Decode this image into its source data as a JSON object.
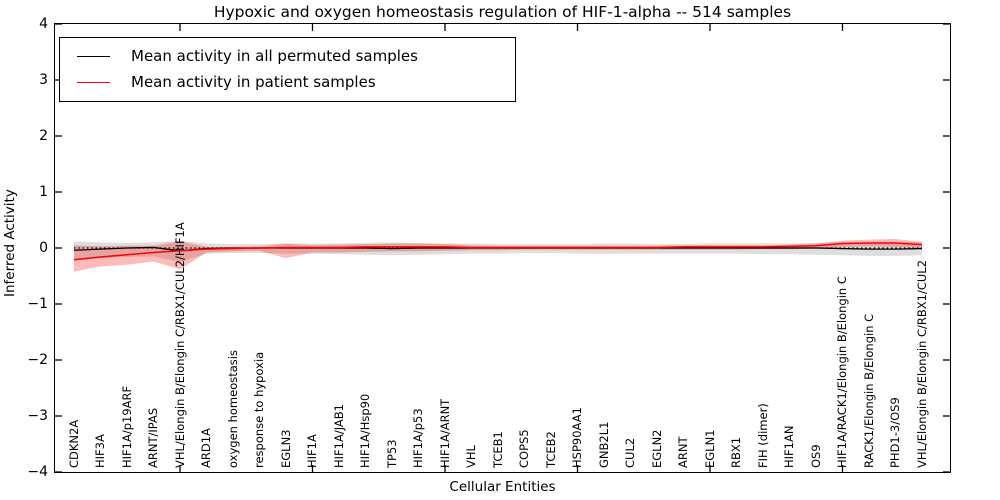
{
  "chart_data": {
    "type": "line",
    "title": "Hypoxic and oxygen homeostasis regulation of HIF-1-alpha -- 514 samples",
    "xlabel": "Cellular Entities",
    "ylabel": "Inferred Activity",
    "ylim": [
      -4,
      4
    ],
    "yticks": [
      4,
      3,
      2,
      1,
      0,
      -1,
      -2,
      -3,
      -4
    ],
    "ytick_labels": [
      "4",
      "3",
      "2",
      "1",
      "0",
      "−1",
      "−2",
      "−3",
      "−4"
    ],
    "xtick_indices": [
      4,
      9,
      14,
      19,
      24,
      29
    ],
    "grid": false,
    "legend_position": "upper left",
    "zero_line": {
      "style": "dotted",
      "color": "#000000",
      "y": 0
    },
    "categories": [
      "CDKN2A",
      "HIF3A",
      "HIF1A/p19ARF",
      "ARNT/IPAS",
      "VHL/Elongin B/Elongin C/RBX1/CUL2/HIF1A",
      "ARD1A",
      "oxygen homeostasis",
      "response to hypoxia",
      "EGLN3",
      "HIF1A",
      "HIF1A/JAB1",
      "HIF1A/Hsp90",
      "TP53",
      "HIF1A/p53",
      "HIF1A/ARNT",
      "VHL",
      "TCEB1",
      "COPS5",
      "TCEB2",
      "HSP90AA1",
      "GNB2L1",
      "CUL2",
      "EGLN2",
      "ARNT",
      "EGLN1",
      "RBX1",
      "FIH (dimer)",
      "HIF1AN",
      "OS9",
      "HIF1A/RACK1/Elongin B/Elongin C",
      "RACK1/Elongin B/Elongin C",
      "PHD1-3/OS9",
      "VHL/Elongin B/Elongin C/RBX1/CUL2"
    ],
    "series": [
      {
        "name": "Mean activity in all permuted samples",
        "color": "#000000",
        "band_color": "#999999",
        "band_opacity": 0.32,
        "values": [
          -0.04,
          -0.02,
          0.0,
          0.01,
          -0.05,
          -0.01,
          0.0,
          0.0,
          0.0,
          0.0,
          0.0,
          0.0,
          -0.01,
          0.0,
          0.0,
          0.0,
          0.0,
          0.0,
          0.0,
          0.0,
          0.0,
          0.0,
          0.0,
          0.0,
          0.0,
          0.0,
          0.0,
          0.0,
          0.0,
          -0.01,
          -0.02,
          -0.02,
          -0.01
        ],
        "band_upper": [
          0.12,
          0.1,
          0.09,
          0.1,
          0.13,
          0.08,
          0.07,
          0.07,
          0.08,
          0.08,
          0.08,
          0.09,
          0.1,
          0.09,
          0.08,
          0.08,
          0.07,
          0.07,
          0.07,
          0.07,
          0.08,
          0.08,
          0.07,
          0.07,
          0.08,
          0.08,
          0.08,
          0.08,
          0.09,
          0.1,
          0.1,
          0.1,
          0.1
        ],
        "band_lower": [
          -0.22,
          -0.18,
          -0.16,
          -0.15,
          -0.25,
          -0.1,
          -0.09,
          -0.09,
          -0.1,
          -0.1,
          -0.11,
          -0.12,
          -0.13,
          -0.12,
          -0.11,
          -0.1,
          -0.1,
          -0.09,
          -0.09,
          -0.1,
          -0.11,
          -0.1,
          -0.1,
          -0.1,
          -0.1,
          -0.1,
          -0.11,
          -0.11,
          -0.12,
          -0.13,
          -0.14,
          -0.14,
          -0.13
        ]
      },
      {
        "name": "Mean activity in patient samples",
        "color": "#ff0000",
        "band_color": "#ff0000",
        "band_opacity": 0.27,
        "values": [
          -0.21,
          -0.16,
          -0.12,
          -0.08,
          -0.05,
          -0.02,
          -0.01,
          0.0,
          0.01,
          0.01,
          0.01,
          0.02,
          0.02,
          0.02,
          0.02,
          0.01,
          0.01,
          0.01,
          0.01,
          0.01,
          0.01,
          0.01,
          0.01,
          0.02,
          0.02,
          0.02,
          0.02,
          0.03,
          0.04,
          0.08,
          0.09,
          0.09,
          0.06
        ],
        "band_upper": [
          0.05,
          0.03,
          0.04,
          0.04,
          0.12,
          0.02,
          0.02,
          0.03,
          0.08,
          0.05,
          0.06,
          0.07,
          0.08,
          0.08,
          0.07,
          0.05,
          0.04,
          0.04,
          0.04,
          0.04,
          0.04,
          0.04,
          0.04,
          0.05,
          0.05,
          0.05,
          0.05,
          0.06,
          0.08,
          0.13,
          0.15,
          0.16,
          0.11
        ],
        "band_lower": [
          -0.42,
          -0.33,
          -0.3,
          -0.24,
          -0.38,
          -0.08,
          -0.06,
          -0.05,
          -0.18,
          -0.08,
          -0.08,
          -0.07,
          -0.06,
          -0.06,
          -0.05,
          -0.04,
          -0.04,
          -0.03,
          -0.03,
          -0.03,
          -0.03,
          -0.03,
          -0.03,
          -0.03,
          -0.03,
          -0.03,
          -0.02,
          -0.02,
          -0.01,
          0.02,
          0.03,
          0.02,
          0.0
        ]
      }
    ],
    "legend": [
      {
        "label": "Mean activity in all permuted samples",
        "color": "#000000"
      },
      {
        "label": "Mean activity in patient samples",
        "color": "#ff0000"
      }
    ]
  }
}
